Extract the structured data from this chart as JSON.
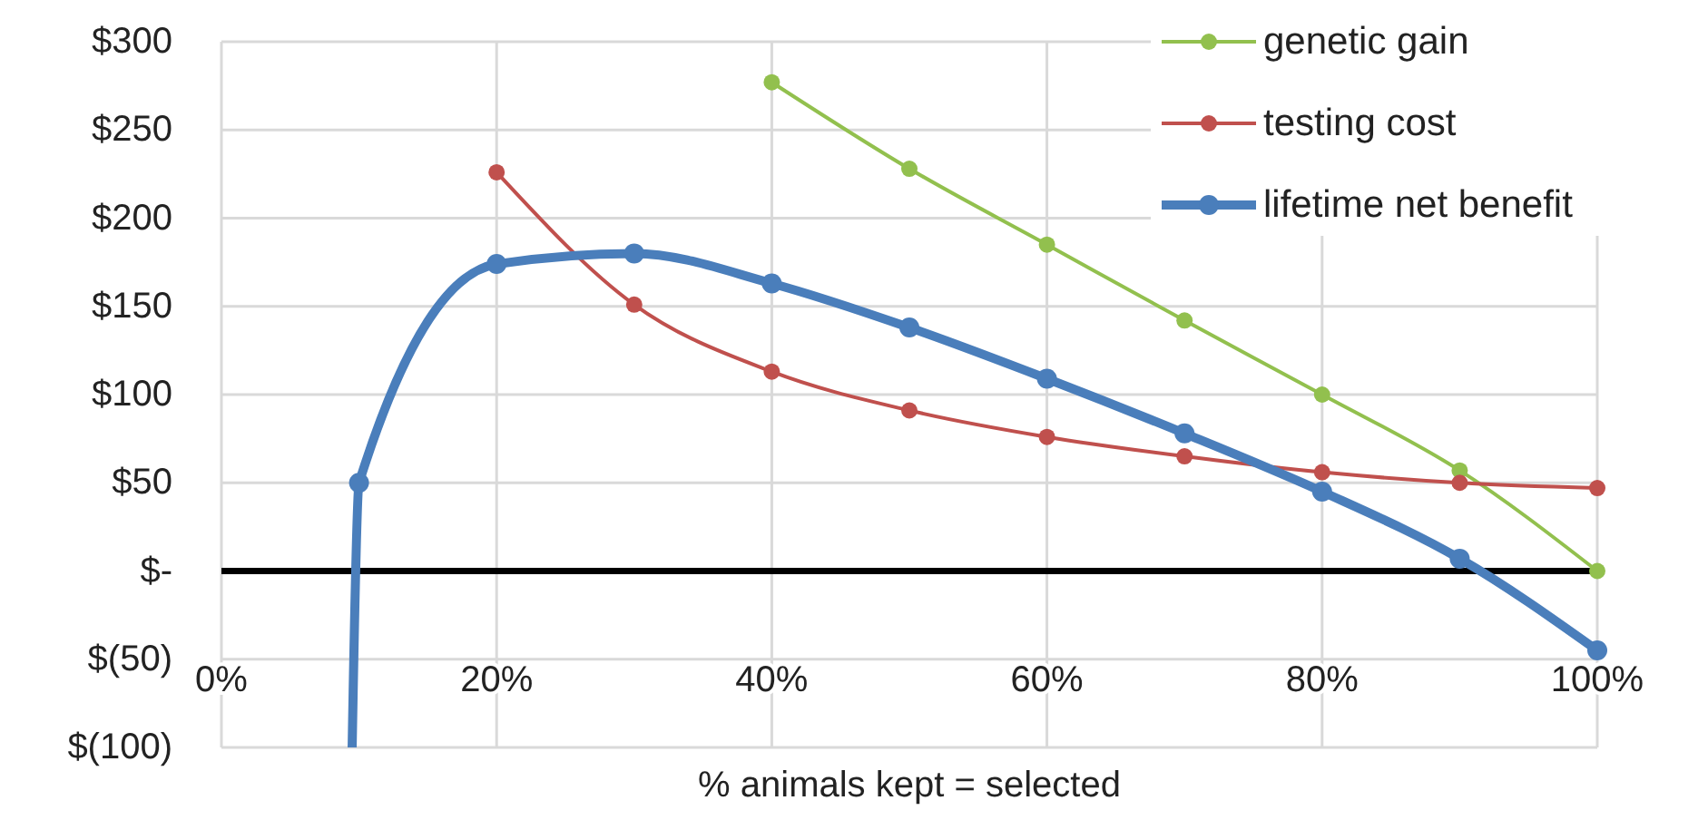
{
  "chart_data": {
    "type": "line",
    "xlabel": "% animals kept = selected",
    "xlim": [
      0,
      100
    ],
    "xticks": [
      {
        "value": 0,
        "label": "0%"
      },
      {
        "value": 20,
        "label": "20%"
      },
      {
        "value": 40,
        "label": "40%"
      },
      {
        "value": 60,
        "label": "60%"
      },
      {
        "value": 80,
        "label": "80%"
      },
      {
        "value": 100,
        "label": "100%"
      }
    ],
    "ylim": [
      -100,
      300
    ],
    "yticks": [
      {
        "value": -100,
        "label": "$(100)"
      },
      {
        "value": -50,
        "label": "$(50)"
      },
      {
        "value": 0,
        "label": "$-"
      },
      {
        "value": 50,
        "label": "$50"
      },
      {
        "value": 100,
        "label": "$100"
      },
      {
        "value": 150,
        "label": "$150"
      },
      {
        "value": 200,
        "label": "$200"
      },
      {
        "value": 250,
        "label": "$250"
      },
      {
        "value": 300,
        "label": "$300"
      }
    ],
    "grid": true,
    "legend": "top right",
    "marker": "circle",
    "line_style": "solid",
    "series": [
      {
        "name": "genetic gain",
        "color": "#92c04e",
        "x": [
          40,
          50,
          60,
          70,
          80,
          90,
          100
        ],
        "values": [
          277,
          228,
          185,
          142,
          100,
          57,
          0
        ]
      },
      {
        "name": "testing cost",
        "color": "#c0504d",
        "x": [
          20,
          30,
          40,
          50,
          60,
          70,
          80,
          90,
          100
        ],
        "values": [
          226,
          151,
          113,
          91,
          76,
          65,
          56,
          50,
          47
        ]
      },
      {
        "name": "lifetime net benefit",
        "color": "#4a7ebb",
        "x": [
          9.5,
          10,
          20,
          30,
          40,
          50,
          60,
          70,
          80,
          90,
          100
        ],
        "values": [
          -100,
          50,
          174,
          180,
          163,
          138,
          109,
          78,
          45,
          7,
          -45
        ]
      }
    ]
  }
}
